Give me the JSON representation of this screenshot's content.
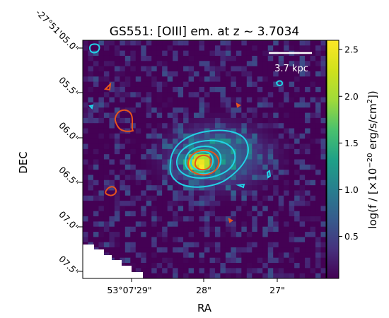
{
  "chart_data": {
    "type": "heatmap",
    "title": "GS551: [OIII] em. at z ~ 3.7034",
    "xlabel": "RA",
    "ylabel": "DEC",
    "x_ticks": [
      "53°07'29\"",
      "28\"",
      "27\""
    ],
    "y_ticks": [
      "-27°51'05.0\"",
      "05.5\"",
      "06.0\"",
      "06.5\"",
      "07.0\"",
      "07.5\""
    ],
    "colorbar": {
      "label": "log(f / [×10⁻²⁰ erg/s/cm²])",
      "label_main": "log(f / [×10",
      "label_exp": "−20",
      "label_tail": " erg/s/cm",
      "label_sup2": "2",
      "label_end": "])",
      "ticks": [
        "0.5",
        "1.0",
        "1.5",
        "2.0",
        "2.5"
      ],
      "tick_values": [
        0.5,
        1.0,
        1.5,
        2.0,
        2.5
      ],
      "range": [
        0.05,
        2.6
      ],
      "colormap": "viridis"
    },
    "scale_bar": {
      "label": "3.7 kpc"
    },
    "contours": [
      {
        "line": "cyan",
        "color": "#22d3e6"
      },
      {
        "line": "orange",
        "color": "#e8541c"
      }
    ],
    "peak": {
      "value": 2.55
    }
  }
}
